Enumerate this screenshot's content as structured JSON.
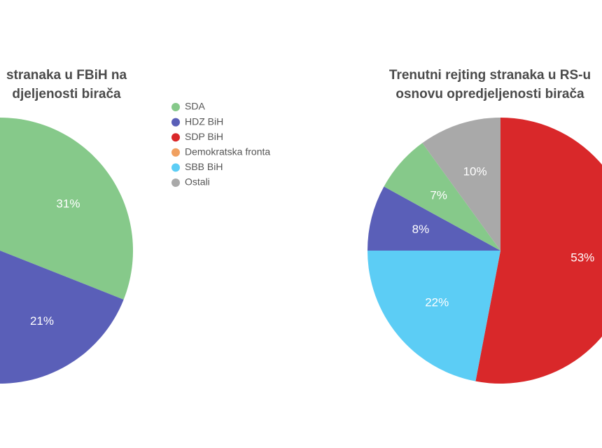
{
  "chart_data": [
    {
      "type": "pie",
      "title": [
        "stranaka u FBiH na",
        "djeljenosti birača"
      ],
      "values": [
        31,
        21
      ],
      "value_labels": [
        "31%",
        "21%"
      ],
      "colors": [
        "#86c98a",
        "#5a5fb8"
      ]
    },
    {
      "type": "pie",
      "title": [
        "Trenutni rejting stranaka u RS-u",
        "osnovu opredjeljenosti birača"
      ],
      "values": [
        53,
        22,
        8,
        7,
        10
      ],
      "value_labels": [
        "53%",
        "22%",
        "8%",
        "7%",
        "10%"
      ],
      "colors": [
        "#d9282a",
        "#5ccdf5",
        "#5a5fb8",
        "#86c98a",
        "#a9a9a9"
      ]
    }
  ],
  "legend": [
    {
      "name": "SDA",
      "color": "#86c98a"
    },
    {
      "name": "HDZ BiH",
      "color": "#5a5fb8"
    },
    {
      "name": "SDP BiH",
      "color": "#d9282a"
    },
    {
      "name": "Demokratska fronta",
      "color": "#f0a060"
    },
    {
      "name": "SBB BiH",
      "color": "#5ccdf5"
    },
    {
      "name": "Ostali",
      "color": "#a9a9a9"
    }
  ]
}
